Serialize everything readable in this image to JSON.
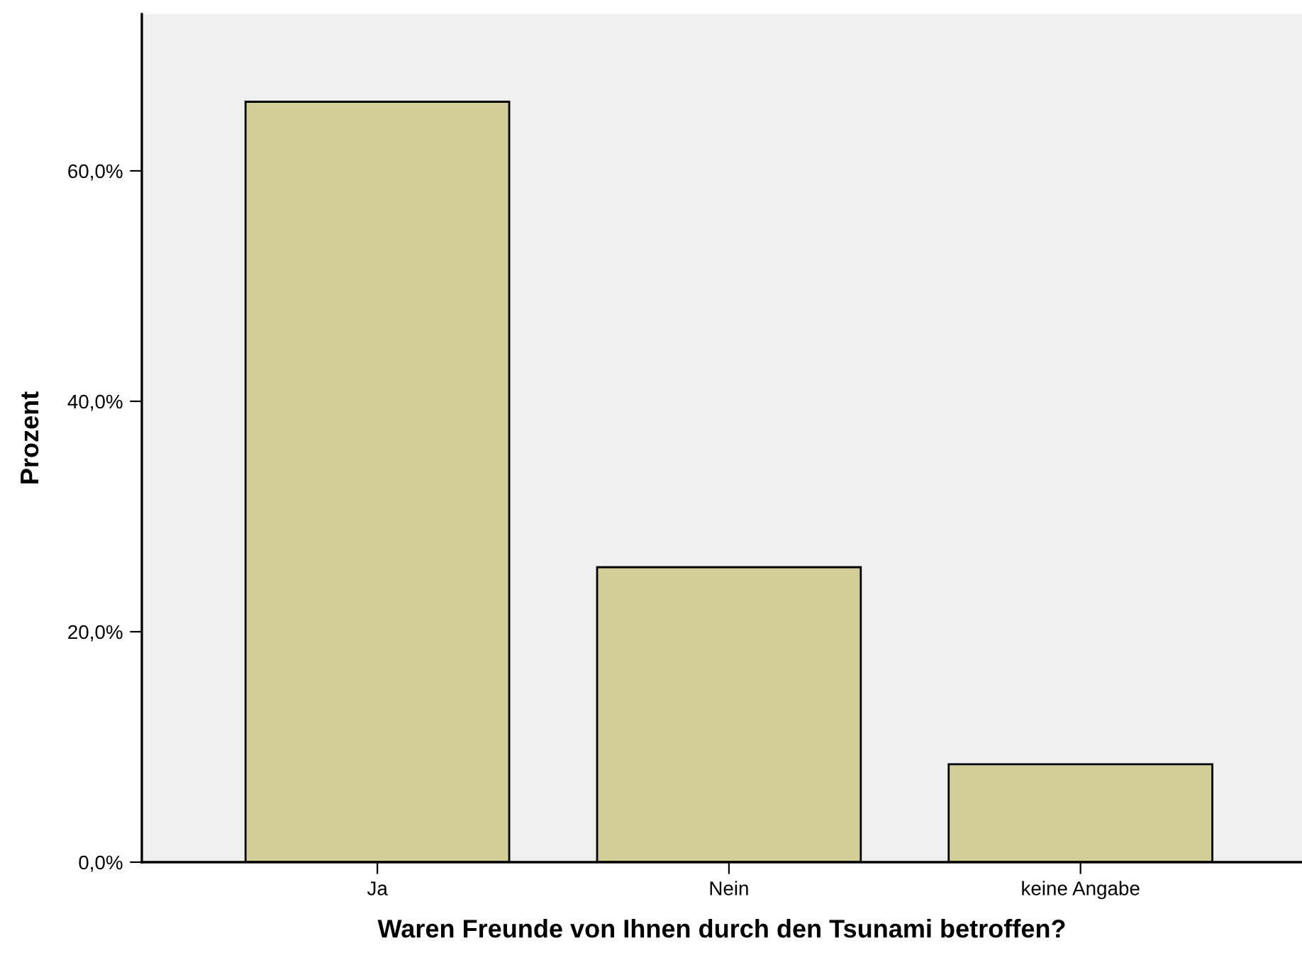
{
  "chart_data": {
    "type": "bar",
    "xlabel": "Waren Freunde von Ihnen durch den Tsunami betroffen?",
    "ylabel": "Prozent",
    "categories": [
      "Ja",
      "Nein",
      "keine Angabe"
    ],
    "values": [
      66.0,
      25.6,
      8.5
    ],
    "color": "#d3ce97",
    "ylim": [
      0,
      73.6
    ],
    "yticks": [
      {
        "value": 0,
        "label": "0,0%"
      },
      {
        "value": 20,
        "label": "20,0%"
      },
      {
        "value": 40,
        "label": "40,0%"
      },
      {
        "value": 60,
        "label": "60,0%"
      }
    ],
    "grid": false
  }
}
